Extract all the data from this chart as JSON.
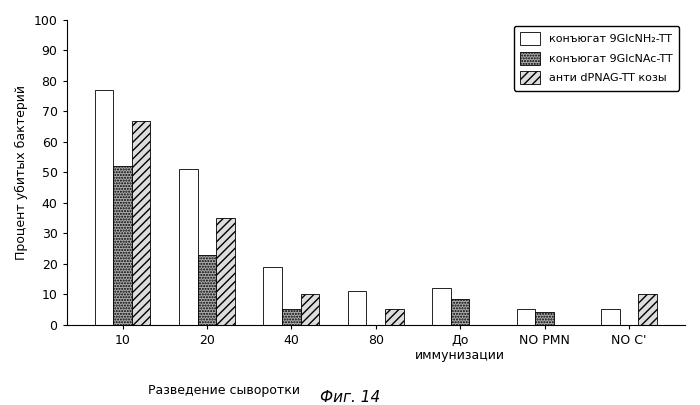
{
  "categories": [
    "10",
    "20",
    "40",
    "80",
    "До\nиммунизации",
    "NO PMN",
    "NO C'"
  ],
  "series": [
    {
      "name": "конъюгат 9GlcNH₂-TT",
      "values": [
        77,
        51,
        19,
        11,
        12,
        5,
        5
      ],
      "hatch": "",
      "facecolor": "#ffffff",
      "edgecolor": "#000000"
    },
    {
      "name": "конъюгат 9GlcNAc-TT",
      "values": [
        52,
        23,
        5,
        0,
        8.5,
        4,
        0
      ],
      "hatch": "......",
      "facecolor": "#aaaaaa",
      "edgecolor": "#000000"
    },
    {
      "name": "анти dPNAG-TT козы",
      "values": [
        67,
        35,
        10,
        5,
        0,
        0,
        10
      ],
      "hatch": "////",
      "facecolor": "#dddddd",
      "edgecolor": "#000000"
    }
  ],
  "ylabel": "Процент убитых бактерий",
  "xlabel": "Разведение сыворотки",
  "title": "Фиг. 14",
  "ylim": [
    0,
    100
  ],
  "yticks": [
    0,
    10,
    20,
    30,
    40,
    50,
    60,
    70,
    80,
    90,
    100
  ],
  "bar_width": 0.22,
  "background_color": "#ffffff",
  "legend_fontsize": 8,
  "axis_fontsize": 9,
  "title_fontsize": 11
}
